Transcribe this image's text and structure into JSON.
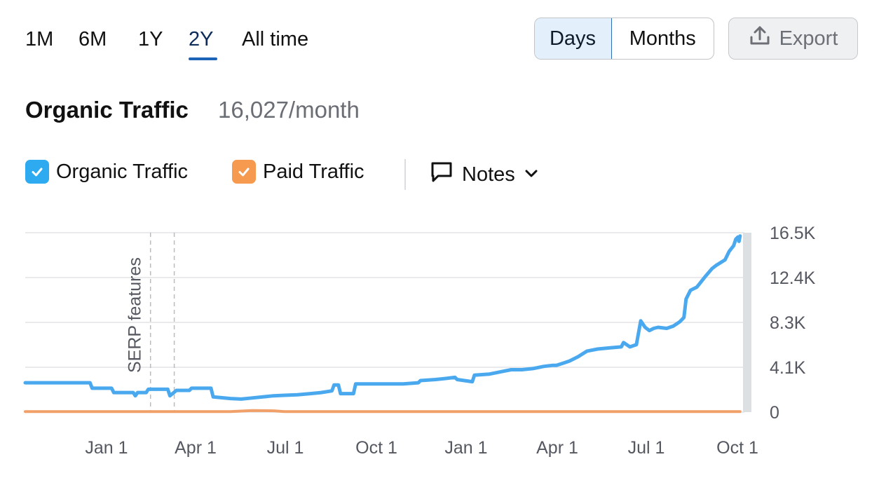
{
  "range_tabs": [
    "1M",
    "6M",
    "1Y",
    "2Y",
    "All time"
  ],
  "active_range": "2Y",
  "granularity": {
    "days": "Days",
    "months": "Months",
    "selected": "Days"
  },
  "export_label": "Export",
  "header": {
    "title": "Organic Traffic",
    "value": "16,027/month"
  },
  "legend": {
    "organic": {
      "label": "Organic Traffic",
      "checked": true,
      "color": "#2daaf0"
    },
    "paid": {
      "label": "Paid Traffic",
      "checked": true,
      "color": "#f59a4f"
    },
    "notes_label": "Notes"
  },
  "icons": {
    "export": "upload-icon",
    "notes": "speech-bubble-icon",
    "dropdown": "chevron-down-icon",
    "check": "check-icon"
  },
  "chart_data": {
    "type": "line",
    "x_ticks": [
      "Jan 1",
      "Apr 1",
      "Jul 1",
      "Oct 1",
      "Jan 1",
      "Apr 1",
      "Jul 1",
      "Oct 1"
    ],
    "y_ticks": [
      "16.5K",
      "12.4K",
      "8.3K",
      "4.1K",
      "0"
    ],
    "ylim": [
      0,
      16500
    ],
    "y_axis_side": "right",
    "grid": true,
    "annotations": [
      {
        "label": "SERP features",
        "month_index": 5.8
      }
    ],
    "x_month_range": [
      0,
      24
    ],
    "series": [
      {
        "name": "Organic Traffic",
        "color": "#4aa9ee",
        "points": [
          [
            0,
            2700
          ],
          [
            1.5,
            2700
          ],
          [
            3.0,
            2700
          ],
          [
            3.1,
            2200
          ],
          [
            4.0,
            2200
          ],
          [
            4.1,
            1800
          ],
          [
            5.0,
            1800
          ],
          [
            5.1,
            1500
          ],
          [
            5.2,
            1800
          ],
          [
            5.6,
            1800
          ],
          [
            5.7,
            2100
          ],
          [
            6.6,
            2100
          ],
          [
            6.7,
            1500
          ],
          [
            7.0,
            2000
          ],
          [
            7.6,
            2000
          ],
          [
            7.7,
            2200
          ],
          [
            8.6,
            2200
          ],
          [
            8.7,
            1400
          ],
          [
            9.5,
            1250
          ],
          [
            10.0,
            1200
          ],
          [
            10.5,
            1300
          ],
          [
            11.0,
            1400
          ],
          [
            11.5,
            1500
          ],
          [
            12.0,
            1550
          ],
          [
            12.6,
            1600
          ],
          [
            13.2,
            1700
          ],
          [
            13.7,
            1800
          ],
          [
            14.2,
            1950
          ],
          [
            14.3,
            2500
          ],
          [
            14.5,
            2500
          ],
          [
            14.6,
            1700
          ],
          [
            15.2,
            1700
          ],
          [
            15.3,
            2600
          ],
          [
            16.5,
            2600
          ],
          [
            17.5,
            2600
          ],
          [
            18.2,
            2700
          ],
          [
            18.3,
            2900
          ],
          [
            19.0,
            3000
          ],
          [
            19.5,
            3100
          ],
          [
            19.9,
            3200
          ],
          [
            20.0,
            3000
          ],
          [
            20.7,
            2800
          ],
          [
            20.8,
            3400
          ],
          [
            21.5,
            3500
          ],
          [
            22.0,
            3700
          ],
          [
            22.5,
            3900
          ],
          [
            23.0,
            3900
          ],
          [
            23.5,
            4000
          ],
          [
            24.0,
            4200
          ],
          [
            24.4,
            4300
          ],
          [
            24.6,
            4300
          ],
          [
            24.9,
            4500
          ],
          [
            25.2,
            4700
          ],
          [
            25.6,
            5100
          ],
          [
            26.0,
            5600
          ],
          [
            26.5,
            5800
          ],
          [
            27.0,
            5900
          ],
          [
            27.6,
            6000
          ],
          [
            27.7,
            6400
          ],
          [
            28.0,
            6000
          ],
          [
            28.3,
            6200
          ],
          [
            28.5,
            8400
          ],
          [
            28.7,
            7800
          ],
          [
            28.9,
            7500
          ],
          [
            29.1,
            7700
          ],
          [
            29.3,
            7800
          ],
          [
            29.7,
            7700
          ],
          [
            30.0,
            7900
          ],
          [
            30.3,
            8300
          ],
          [
            30.5,
            8700
          ],
          [
            30.6,
            10400
          ],
          [
            30.8,
            11200
          ],
          [
            31.1,
            11500
          ],
          [
            31.3,
            12000
          ],
          [
            31.5,
            12500
          ],
          [
            31.8,
            13200
          ],
          [
            32.0,
            13500
          ],
          [
            32.4,
            14000
          ],
          [
            32.6,
            14800
          ],
          [
            32.8,
            15300
          ],
          [
            32.9,
            15900
          ],
          [
            33.0,
            16100
          ],
          [
            33.05,
            15700
          ],
          [
            33.1,
            16200
          ]
        ]
      },
      {
        "name": "Paid Traffic",
        "color": "#f2a06a",
        "points": [
          [
            0,
            50
          ],
          [
            9.5,
            50
          ],
          [
            10.5,
            150
          ],
          [
            11.5,
            120
          ],
          [
            12.0,
            50
          ],
          [
            33.1,
            50
          ]
        ]
      }
    ]
  }
}
